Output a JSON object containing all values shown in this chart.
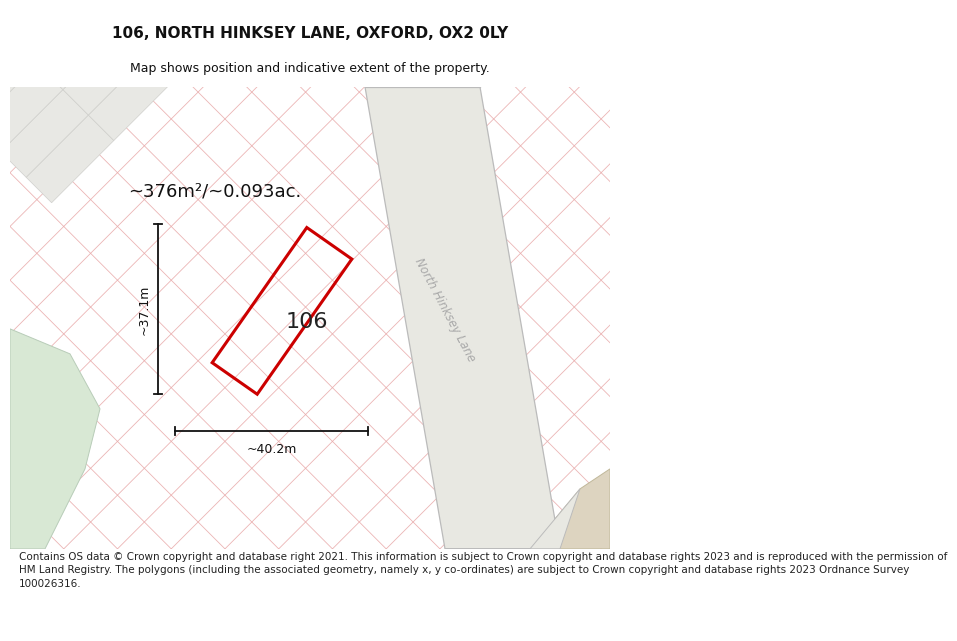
{
  "title": "106, NORTH HINKSEY LANE, OXFORD, OX2 0LY",
  "subtitle": "Map shows position and indicative extent of the property.",
  "footer": "Contains OS data © Crown copyright and database right 2021. This information is subject to Crown copyright and database rights 2023 and is reproduced with the permission of\nHM Land Registry. The polygons (including the associated geometry, namely x, y co-ordinates) are subject to Crown copyright and database rights 2023 Ordnance Survey\n100026316.",
  "area_label": "~376m²/~0.093ac.",
  "width_label": "~40.2m",
  "height_label": "~37.1m",
  "property_number": "106",
  "road_label": "North Hinksey Lane",
  "map_bg": "#f2f2ee",
  "parcel_bg": "#e8e8e4",
  "parcel_edge": "#d0d0cc",
  "pink_line": "#e8a8a8",
  "plot_color": "#cc0000",
  "road_edge": "#bbbbbb",
  "green_color": "#d8e8d4",
  "tan_color": "#ddd4c0",
  "road_fill": "#e4e4de",
  "dim_color": "#111111",
  "text_color": "#111111",
  "road_text_color": "#aaaaaa",
  "title_fontsize": 11,
  "subtitle_fontsize": 9,
  "label_fontsize": 13,
  "dim_fontsize": 9,
  "number_fontsize": 16,
  "footer_fontsize": 7.5
}
